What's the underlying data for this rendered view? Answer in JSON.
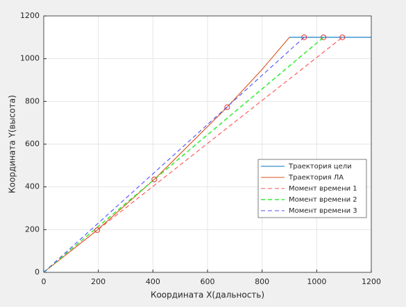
{
  "chart_data": {
    "type": "line",
    "xlabel": "Координата X(дальность)",
    "ylabel": "Координата Y(высота)",
    "xlim": [
      0,
      1200
    ],
    "xticks": [
      0,
      200,
      400,
      600,
      800,
      1000,
      1200
    ],
    "ylim": [
      0,
      1200
    ],
    "yticks": [
      0,
      200,
      400,
      600,
      800,
      1000,
      1200
    ],
    "grid": true,
    "legend": "east",
    "series": [
      {
        "name": "Траектория цели",
        "color": "#0072bd",
        "dash": false,
        "x": [
          900,
          1200
        ],
        "values": [
          1100,
          1100
        ]
      },
      {
        "name": "Траектория ЛА",
        "color": "#d95319",
        "dash": false,
        "x": [
          0,
          196,
          405,
          672,
          800,
          900
        ],
        "values": [
          0,
          198,
          435,
          773,
          950,
          1100
        ]
      },
      {
        "name": "Момент времени 1",
        "color": "#ff4d4d",
        "dash": true,
        "x": [
          0,
          1094
        ],
        "values": [
          0,
          1100
        ]
      },
      {
        "name": "Момент времени 2",
        "color": "#33ee33",
        "dash": true,
        "x": [
          0,
          1025
        ],
        "values": [
          0,
          1100
        ]
      },
      {
        "name": "Момент времени 3",
        "color": "#4d4dff",
        "dash": true,
        "x": [
          0,
          954
        ],
        "values": [
          0,
          1100
        ]
      }
    ],
    "markers": {
      "color": "#e03030",
      "x": [
        196,
        405,
        672,
        954,
        1025,
        1094
      ],
      "values": [
        198,
        435,
        773,
        1100,
        1100,
        1100
      ]
    }
  }
}
